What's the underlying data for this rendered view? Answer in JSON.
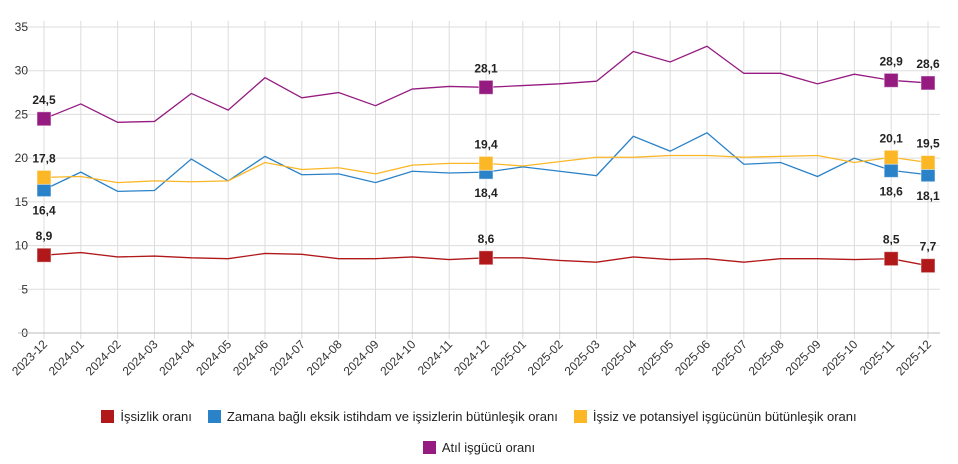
{
  "chart_data": {
    "type": "line",
    "title": "",
    "xlabel": "",
    "ylabel": "",
    "ylim": [
      0,
      35
    ],
    "yticks": [
      "0",
      "5",
      "10",
      "15",
      "20",
      "25",
      "30",
      "35"
    ],
    "grid": true,
    "legend_position": "bottom",
    "categories": [
      "2023-12",
      "2024-01",
      "2024-02",
      "2024-03",
      "2024-04",
      "2024-05",
      "2024-06",
      "2024-07",
      "2024-08",
      "2024-09",
      "2024-10",
      "2024-11",
      "2024-12",
      "2025-01",
      "2025-02",
      "2025-03",
      "2025-04",
      "2025-05",
      "2025-06",
      "2025-07",
      "2025-08",
      "2025-09",
      "2025-10",
      "2025-11",
      "2025-12"
    ],
    "series": [
      {
        "name": "İşsizlik oranı",
        "color": "#b0181a",
        "labels_below": false,
        "values": [
          8.9,
          9.2,
          8.7,
          8.8,
          8.6,
          8.5,
          9.1,
          9.0,
          8.5,
          8.5,
          8.7,
          8.4,
          8.6,
          8.6,
          8.3,
          8.1,
          8.7,
          8.4,
          8.5,
          8.1,
          8.5,
          8.5,
          8.4,
          8.5,
          7.7
        ],
        "marked": {
          "0": "8,9",
          "12": "8,6",
          "23": "8,5",
          "24": "7,7"
        }
      },
      {
        "name": "Zamana bağlı eksik istihdam ve işsizlerin bütünleşik oranı",
        "color": "#2a82c8",
        "labels_below": true,
        "values": [
          16.4,
          18.4,
          16.2,
          16.3,
          19.9,
          17.4,
          20.2,
          18.1,
          18.2,
          17.2,
          18.5,
          18.3,
          18.4,
          19.0,
          18.5,
          18.0,
          22.5,
          20.8,
          22.9,
          19.3,
          19.5,
          17.9,
          20.0,
          18.6,
          18.1
        ],
        "marked": {
          "0": "16,4",
          "12": "18,4",
          "23": "18,6",
          "24": "18,1"
        }
      },
      {
        "name": "İşsiz ve potansiyel işgücünün bütünleşik oranı",
        "color": "#fbb726",
        "labels_below": false,
        "values": [
          17.8,
          17.9,
          17.2,
          17.4,
          17.3,
          17.4,
          19.5,
          18.7,
          18.9,
          18.2,
          19.2,
          19.4,
          19.4,
          19.1,
          19.6,
          20.1,
          20.1,
          20.3,
          20.3,
          20.1,
          20.2,
          20.3,
          19.5,
          20.1,
          19.5
        ],
        "marked": {
          "0": "17,8",
          "12": "19,4",
          "23": "20,1",
          "24": "19,5"
        }
      },
      {
        "name": "Atıl işgücü oranı",
        "color": "#951b81",
        "labels_below": false,
        "values": [
          24.5,
          26.2,
          24.1,
          24.2,
          27.4,
          25.5,
          29.2,
          26.9,
          27.5,
          26.0,
          27.9,
          28.2,
          28.1,
          28.3,
          28.5,
          28.8,
          32.2,
          31.0,
          32.8,
          29.7,
          29.7,
          28.5,
          29.6,
          28.9,
          28.6
        ],
        "marked": {
          "0": "24,5",
          "12": "28,1",
          "23": "28,9",
          "24": "28,6"
        }
      }
    ]
  }
}
